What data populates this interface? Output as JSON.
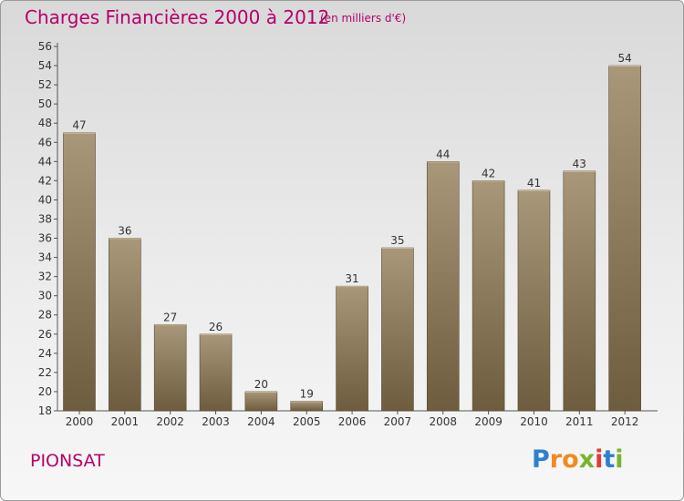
{
  "title": "Charges Financières 2000 à 2012",
  "subtitle": "(en milliers d'€)",
  "town": "PIONSAT",
  "logo": {
    "letters": [
      "P",
      "r",
      "o",
      "x",
      "i",
      "t",
      "i"
    ],
    "colors": [
      "#2e7fd0",
      "#f28a1e",
      "#f28a1e",
      "#7ab42e",
      "#e03a3a",
      "#2e7fd0",
      "#7ab42e"
    ]
  },
  "colors": {
    "bar_top": "#a9977a",
    "bar_bottom": "#6e5c3f",
    "accent": "#b5006a"
  },
  "chart_data": {
    "type": "bar",
    "title": "Charges Financières 2000 à 2012",
    "subtitle": "(en milliers d'€)",
    "categories": [
      "2000",
      "2001",
      "2002",
      "2003",
      "2004",
      "2005",
      "2006",
      "2007",
      "2008",
      "2009",
      "2010",
      "2011",
      "2012"
    ],
    "values": [
      47,
      36,
      27,
      26,
      20,
      19,
      31,
      35,
      44,
      42,
      41,
      43,
      54
    ],
    "ylim": [
      18,
      56
    ],
    "yticks": [
      18,
      20,
      22,
      24,
      26,
      28,
      30,
      32,
      34,
      36,
      38,
      40,
      42,
      44,
      46,
      48,
      50,
      52,
      54,
      56
    ],
    "grid": false,
    "legend": "none"
  }
}
